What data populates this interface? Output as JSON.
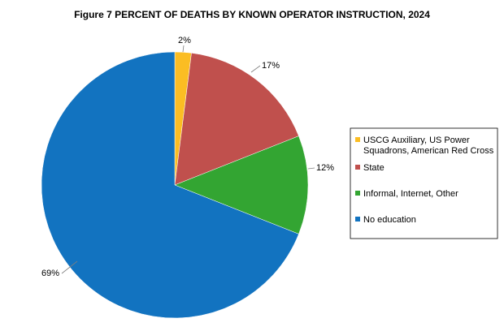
{
  "chart_data": {
    "type": "pie",
    "title": "Figure 7 PERCENT OF DEATHS BY KNOWN OPERATOR INSTRUCTION, 2024",
    "start_angle_deg": 0,
    "direction": "clockwise",
    "legend_position": "right",
    "slices": [
      {
        "legend_lines": [
          "USCG Auxiliary, US Power",
          "Squadrons, American Red Cross"
        ],
        "value": 2,
        "label": "2%",
        "color": "#fbbd23"
      },
      {
        "legend_lines": [
          "State"
        ],
        "value": 17,
        "label": "17%",
        "color": "#c0504d"
      },
      {
        "legend_lines": [
          "Informal, Internet, Other"
        ],
        "value": 12,
        "label": "12%",
        "color": "#33a532"
      },
      {
        "legend_lines": [
          "No education"
        ],
        "value": 69,
        "label": "69%",
        "color": "#1273c0"
      }
    ]
  }
}
